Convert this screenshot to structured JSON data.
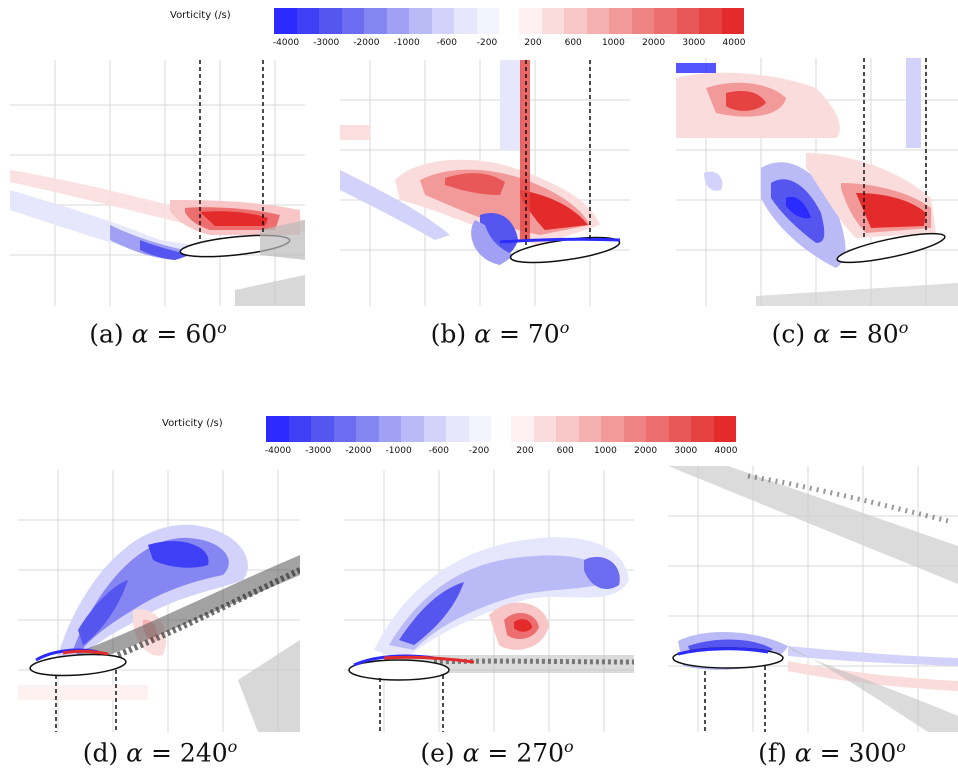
{
  "colorbar": {
    "title": "Vorticity (/s)",
    "neg_ticks": [
      "-4000",
      "-3000",
      "-2000",
      "-1000",
      "-600",
      "-200"
    ],
    "pos_ticks": [
      "200",
      "600",
      "1000",
      "2000",
      "3000",
      "4000"
    ],
    "neg_colors": [
      "#2b2bff",
      "#3f3ff5",
      "#5555f0",
      "#6c6cf0",
      "#8686f2",
      "#a0a0f4",
      "#babaf7",
      "#d2d2fa",
      "#e6e6fc",
      "#f4f4fe"
    ],
    "pos_colors": [
      "#fdf1f1",
      "#fbdcdc",
      "#f8c6c6",
      "#f5b0b0",
      "#f29a9a",
      "#ef8484",
      "#ec6e6e",
      "#e95858",
      "#e64242",
      "#e32b2b"
    ]
  },
  "panels": [
    {
      "letter": "(a)",
      "symbol": "α",
      "equals": "=",
      "value": "60",
      "unit": "o"
    },
    {
      "letter": "(b)",
      "symbol": "α",
      "equals": "=",
      "value": "70",
      "unit": "o"
    },
    {
      "letter": "(c)",
      "symbol": "α",
      "equals": "=",
      "value": "80",
      "unit": "o"
    },
    {
      "letter": "(d)",
      "symbol": "α",
      "equals": "=",
      "value": "240",
      "unit": "o"
    },
    {
      "letter": "(e)",
      "symbol": "α",
      "equals": "=",
      "value": "270",
      "unit": "o"
    },
    {
      "letter": "(f)",
      "symbol": "α",
      "equals": "=",
      "value": "300",
      "unit": "o"
    }
  ]
}
